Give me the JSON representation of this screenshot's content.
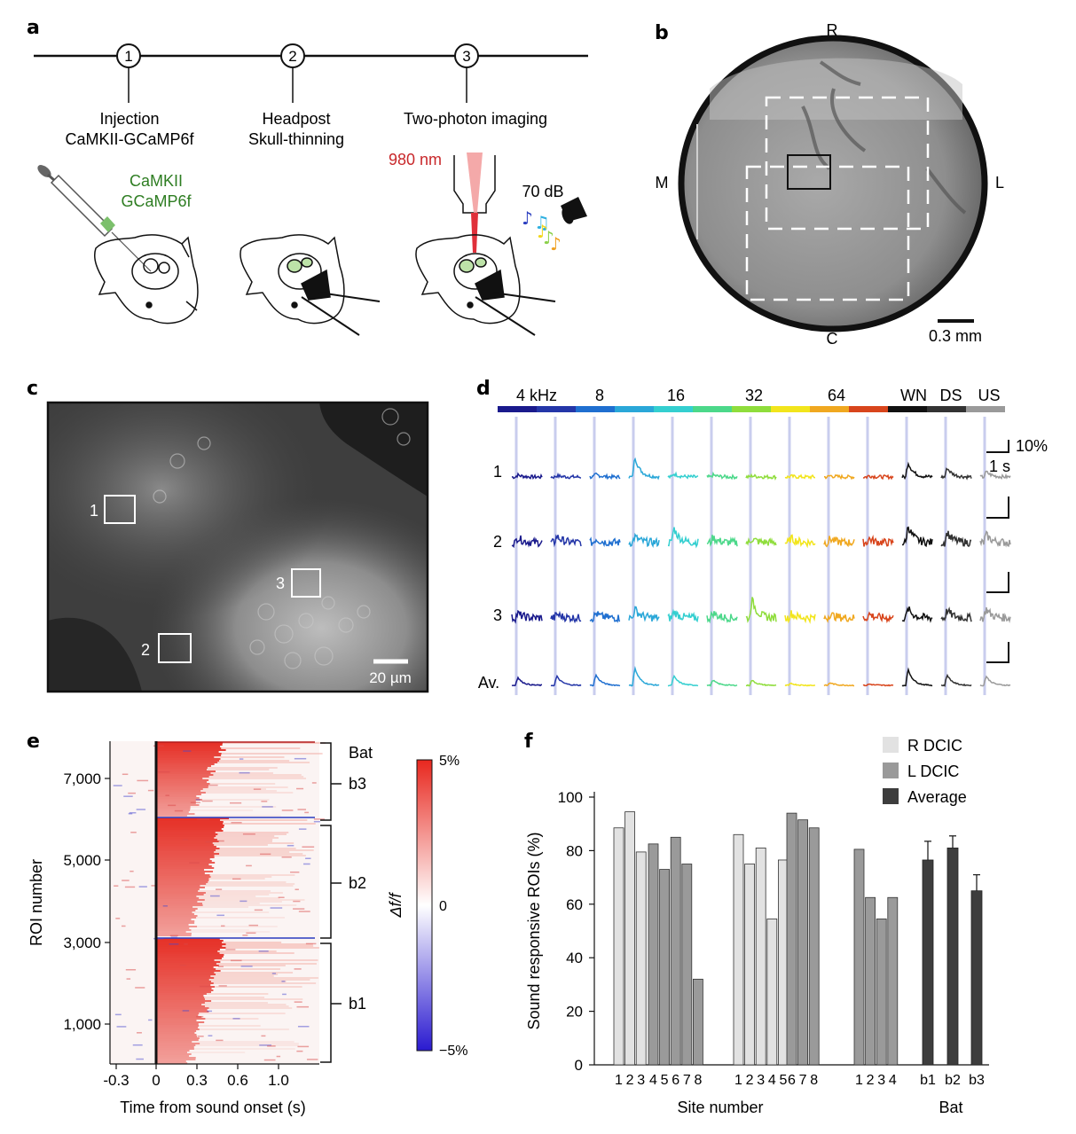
{
  "panels": {
    "a": {
      "label": "a",
      "steps": [
        {
          "num": "1",
          "line1": "Injection",
          "line2": "CaMKII-GCaMP6f"
        },
        {
          "num": "2",
          "line1": "Headpost",
          "line2": "Skull-thinning"
        },
        {
          "num": "3",
          "line1": "Two-photon imaging",
          "line2": ""
        }
      ],
      "virus_line1": "CaMKII",
      "virus_line2": "GCaMP6f",
      "laser": "980 nm",
      "sound_level": "70 dB"
    },
    "b": {
      "label": "b",
      "dir_top": "R",
      "dir_bottom": "C",
      "dir_left": "M",
      "dir_right": "L",
      "scale": "0.3 mm"
    },
    "c": {
      "label": "c",
      "rois": [
        "1",
        "2",
        "3"
      ],
      "scale": "20 µm"
    },
    "d": {
      "label": "d",
      "freq_labels": [
        "4 kHz",
        "8",
        "16",
        "32",
        "64",
        "WN",
        "DS",
        "US"
      ],
      "row_labels": [
        "1",
        "2",
        "3",
        "Av."
      ],
      "scale_y": "10%",
      "scale_x": "1 s",
      "colors": [
        "#1a1a8c",
        "#2436a8",
        "#1f6fd0",
        "#2aa7d8",
        "#34cfd0",
        "#4cd88a",
        "#8fdd3c",
        "#f2e51c",
        "#f0a820",
        "#d8451c",
        "#111111",
        "#333333",
        "#9a9a9a"
      ]
    },
    "e": {
      "label": "e",
      "ylabel": "ROI number",
      "xlabel": "Time from sound onset (s)",
      "yticks": [
        "7,000",
        "5,000",
        "3,000",
        "1,000"
      ],
      "xticks": [
        "-0.3",
        "0",
        "0.3",
        "0.6",
        "1.0"
      ],
      "group_title": "Bat",
      "groups": [
        "b3",
        "b2",
        "b1"
      ],
      "cbar_label": "Δf/f",
      "cbar_ticks": [
        "5%",
        "0",
        "−5%"
      ]
    },
    "f": {
      "label": "f"
    }
  },
  "chart_data": {
    "type": "bar",
    "title": "",
    "ylabel": "Sound responsive ROIs (%)",
    "xlabel": "Site number",
    "xlabel2": "Bat",
    "ylim": [
      0,
      100
    ],
    "yticks": [
      "0",
      "20",
      "40",
      "60",
      "80",
      "100"
    ],
    "legend": [
      {
        "name": "R DCIC",
        "color": "#e2e2e2"
      },
      {
        "name": "L DCIC",
        "color": "#9a9a9a"
      },
      {
        "name": "Average",
        "color": "#3d3d3d"
      }
    ],
    "groups": [
      {
        "bat": "b1",
        "hemisphere": "R DCIC",
        "sites": [
          "1",
          "2",
          "3"
        ],
        "values": [
          88.5,
          94.5,
          79.5
        ]
      },
      {
        "bat": "b1",
        "hemisphere": "L DCIC",
        "sites": [
          "4",
          "5",
          "6",
          "7",
          "8"
        ],
        "values": [
          82.5,
          73,
          85,
          75,
          32
        ]
      },
      {
        "bat": "b2",
        "hemisphere": "R DCIC",
        "sites": [
          "1",
          "2",
          "3",
          "4",
          "5"
        ],
        "values": [
          86,
          75,
          81,
          54.5,
          76.5
        ]
      },
      {
        "bat": "b2",
        "hemisphere": "L DCIC",
        "sites": [
          "6",
          "7",
          "8"
        ],
        "values": [
          94,
          91.5,
          88.5
        ]
      },
      {
        "bat": "b3",
        "hemisphere": "L DCIC",
        "sites": [
          "1",
          "2",
          "3",
          "4"
        ],
        "values": [
          80.5,
          62.5,
          54.5,
          62.5
        ]
      }
    ],
    "averages": {
      "categories": [
        "b1",
        "b2",
        "b3"
      ],
      "values": [
        76.5,
        81,
        65
      ],
      "errors": [
        7,
        4.5,
        6
      ]
    }
  }
}
